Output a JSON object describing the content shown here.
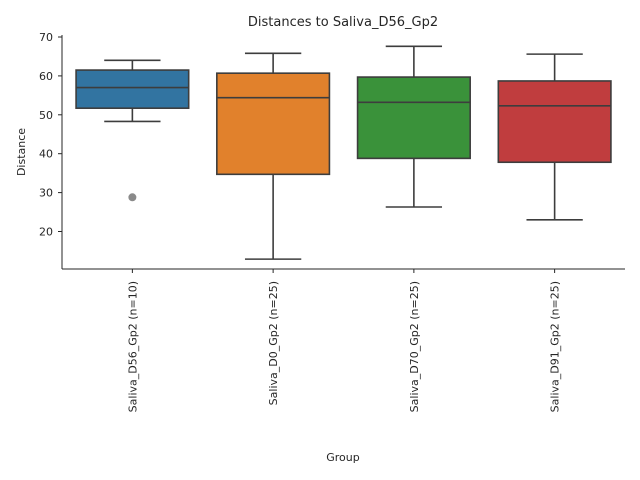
{
  "chart_data": {
    "type": "box",
    "title": "Distances to Saliva_D56_Gp2",
    "xlabel": "Group",
    "ylabel": "Distance",
    "ylim": [
      10,
      70
    ],
    "yticks": [
      20,
      30,
      40,
      50,
      60,
      70
    ],
    "grid": false,
    "categories": [
      "Saliva_D56_Gp2 (n=10)",
      "Saliva_D0_Gp2 (n=25)",
      "Saliva_D70_Gp2 (n=25)",
      "Saliva_D91_Gp2 (n=25)"
    ],
    "boxes": [
      {
        "whisker_low": 48.3,
        "q1": 51.7,
        "median": 57.0,
        "q3": 61.5,
        "whisker_high": 64.0,
        "outliers": [
          28.8
        ],
        "color": "#3274a1"
      },
      {
        "whisker_low": 12.9,
        "q1": 34.7,
        "median": 54.4,
        "q3": 60.7,
        "whisker_high": 65.8,
        "outliers": [],
        "color": "#e1812c"
      },
      {
        "whisker_low": 26.3,
        "q1": 38.8,
        "median": 53.2,
        "q3": 59.7,
        "whisker_high": 67.6,
        "outliers": [],
        "color": "#3a923a"
      },
      {
        "whisker_low": 23.0,
        "q1": 37.8,
        "median": 52.3,
        "q3": 58.7,
        "whisker_high": 65.6,
        "outliers": [],
        "color": "#c03d3e"
      }
    ]
  }
}
